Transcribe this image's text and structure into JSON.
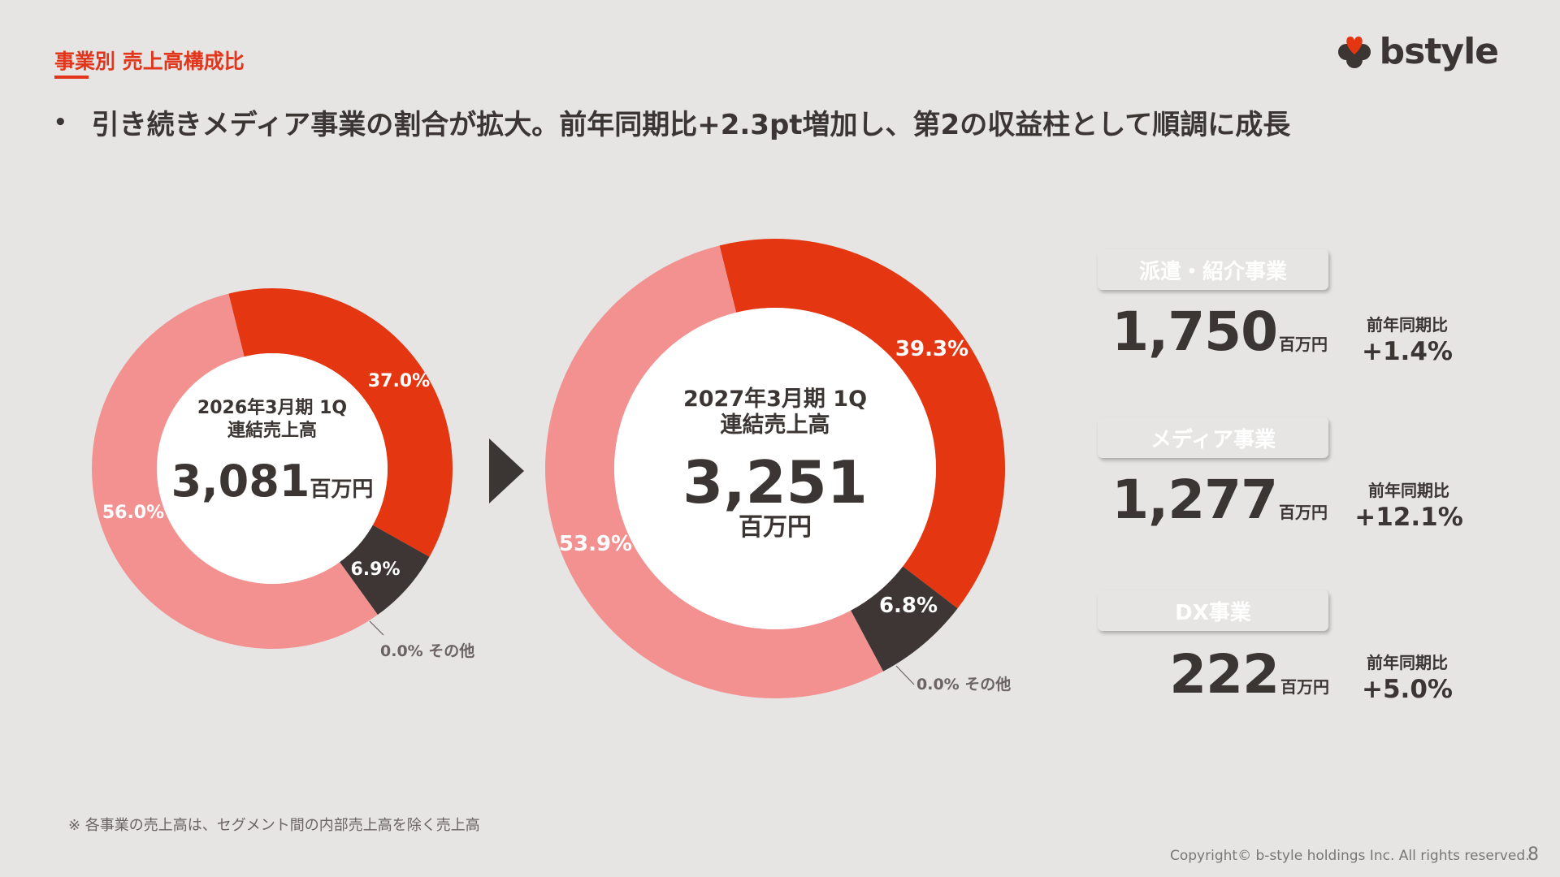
{
  "header": {
    "section_title": "事業別 売上高構成比",
    "headline": "引き続きメディア事業の割合が拡大。前年同期比+2.3pt増加し、第2の収益柱として順調に成長",
    "bullet": "•"
  },
  "logo": {
    "text": "bstyle",
    "icon": "heart-clover-icon"
  },
  "chart_data": [
    {
      "type": "pie",
      "variant": "donut",
      "center_title_line1": "2026年3月期 1Q",
      "center_title_line2": "連結売上高",
      "total": "3,081",
      "total_unit": "百万円",
      "slices": [
        {
          "name": "メディア事業",
          "value": 37.0,
          "label": "37.0%",
          "color": "#e53612"
        },
        {
          "name": "DX事業",
          "value": 6.9,
          "label": "6.9%",
          "color": "#3d3634"
        },
        {
          "name": "その他",
          "value": 0.0,
          "label": "0.0% その他",
          "color": "#9a9290"
        },
        {
          "name": "派遣・紹介事業",
          "value": 56.0,
          "label": "56.0%",
          "color": "#f29190"
        }
      ]
    },
    {
      "type": "pie",
      "variant": "donut",
      "center_title_line1": "2027年3月期 1Q",
      "center_title_line2": "連結売上高",
      "total": "3,251",
      "total_unit": "百万円",
      "slices": [
        {
          "name": "メディア事業",
          "value": 39.3,
          "label": "39.3%",
          "color": "#e53612"
        },
        {
          "name": "DX事業",
          "value": 6.8,
          "label": "6.8%",
          "color": "#3d3634"
        },
        {
          "name": "その他",
          "value": 0.0,
          "label": "0.0% その他",
          "color": "#9a9290"
        },
        {
          "name": "派遣・紹介事業",
          "value": 53.9,
          "label": "53.9%",
          "color": "#f29190"
        }
      ]
    }
  ],
  "arrow_icon": "triangle-right-icon",
  "businesses": [
    {
      "name": "派遣・紹介事業",
      "color": "#f29190",
      "value": "1,750",
      "unit": "百万円",
      "yoy_label": "前年同期比",
      "yoy": "+1.4%"
    },
    {
      "name": "メディア事業",
      "color": "#e53612",
      "value": "1,277",
      "unit": "百万円",
      "yoy_label": "前年同期比",
      "yoy": "+12.1%"
    },
    {
      "name": "DX事業",
      "color": "#3d3634",
      "value": "222",
      "unit": "百万円",
      "yoy_label": "前年同期比",
      "yoy": "+5.0%"
    }
  ],
  "footer": {
    "footnote": "※ 各事業の売上高は、セグメント間の内部売上高を除く売上高",
    "copyright": "Copyright© b-style holdings Inc. All rights reserved.",
    "page_number": "8"
  }
}
